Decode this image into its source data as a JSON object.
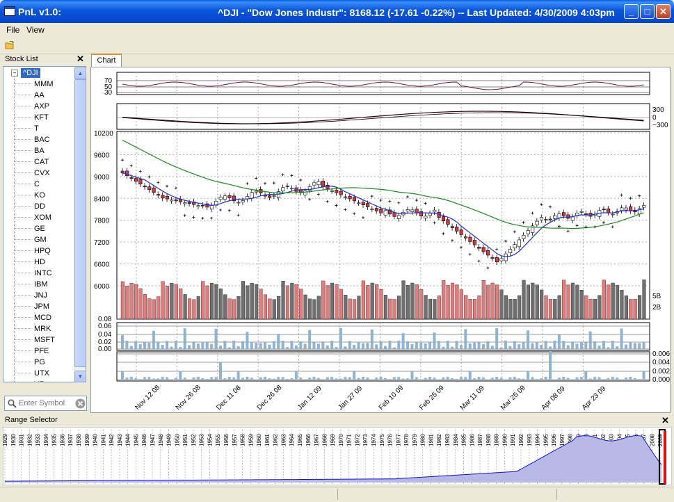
{
  "window": {
    "app_title": "PnL v1.0:",
    "title": "^DJI - \"Dow Jones Industr\": 8168.12 (-17.61 -0.22%)  --  Last Updated:  4/30/2009 4:03pm",
    "minimize": "_",
    "maximize": "□",
    "close": "✕"
  },
  "menu": {
    "file": "File",
    "view": "View"
  },
  "stock_list": {
    "title": "Stock List",
    "close": "✕",
    "root": "^DJI",
    "root_toggle": "−",
    "items": [
      "MMM",
      "AA",
      "AXP",
      "KFT",
      "T",
      "BAC",
      "BA",
      "CAT",
      "CVX",
      "C",
      "KO",
      "DD",
      "XOM",
      "GE",
      "GM",
      "HPQ",
      "HD",
      "INTC",
      "IBM",
      "JNJ",
      "JPM",
      "MCD",
      "MRK",
      "MSFT",
      "PFE",
      "PG",
      "UTX",
      "VZ"
    ],
    "search_placeholder": "Enter Symbol"
  },
  "chart": {
    "tab_label": "Chart",
    "rsi_ticks": [
      "70",
      "50",
      "30"
    ],
    "macd_ticks": [
      "300",
      "0",
      "−300"
    ],
    "price_ticks": [
      "10200",
      "9600",
      "9000",
      "8400",
      "7800",
      "7200",
      "6600",
      "6000"
    ],
    "volume_ticks": [
      "5B",
      "2B"
    ],
    "ind1_ticks": [
      "0.08",
      "0.06",
      "0.04",
      "0.02",
      "0.00"
    ],
    "ind2_ticks": [
      "0.006",
      "0.004",
      "0.002",
      "0.000"
    ],
    "date_labels": [
      "Nov 12 08",
      "Nov 26 08",
      "Dec 11 08",
      "Dec 26 08",
      "Jan 12 09",
      "Jan 27 09",
      "Feb 10 09",
      "Feb 25 09",
      "Mar 11 09",
      "Mar 25 09",
      "Apr 08 09",
      "Apr 23 09"
    ]
  },
  "range_selector": {
    "title": "Range Selector",
    "close": "✕",
    "years": [
      "1929",
      "1930",
      "1931",
      "1932",
      "1933",
      "1934",
      "1935",
      "1936",
      "1937",
      "1938",
      "1939",
      "1940",
      "1941",
      "1942",
      "1943",
      "1944",
      "1945",
      "1946",
      "1947",
      "1948",
      "1949",
      "1950",
      "1951",
      "1952",
      "1953",
      "1954",
      "1955",
      "1956",
      "1957",
      "1958",
      "1959",
      "1960",
      "1961",
      "1962",
      "1963",
      "1964",
      "1965",
      "1966",
      "1967",
      "1968",
      "1969",
      "1970",
      "1971",
      "1972",
      "1973",
      "1974",
      "1975",
      "1976",
      "1977",
      "1978",
      "1979",
      "1980",
      "1981",
      "1982",
      "1983",
      "1984",
      "1985",
      "1986",
      "1987",
      "1988",
      "1989",
      "1990",
      "1991",
      "1992",
      "1993",
      "1994",
      "1995",
      "1996",
      "1997",
      "1998",
      "1999",
      "2000",
      "2001",
      "2002",
      "2003",
      "2004",
      "2005",
      "2006",
      "2007",
      "2008",
      "2009"
    ]
  },
  "colors": {
    "candle_up": "#ffffff",
    "candle_down": "#d03c3c",
    "ma_short": "#1f2fd6",
    "ma_long": "#1a8a1a",
    "psar": "#000000",
    "rsi": "#7a1030",
    "volume_up": "#707070",
    "volume_down": "#e57a7a",
    "indicator_bar": "#8fb3d3",
    "range_fill": "#b9b9e6",
    "range_line": "#1010dd"
  }
}
